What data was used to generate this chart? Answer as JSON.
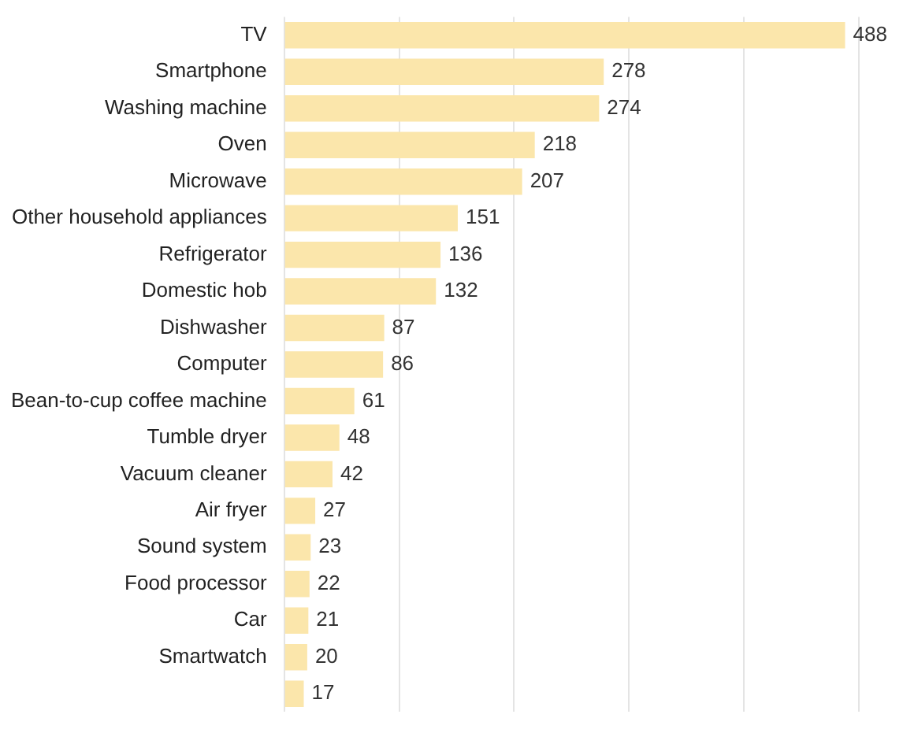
{
  "chart_data": {
    "type": "bar",
    "orientation": "horizontal",
    "categories": [
      "TV",
      "Smartphone",
      "Washing machine",
      "Oven",
      "Microwave",
      "Other household appliances",
      "Refrigerator",
      "Domestic hob",
      "Dishwasher",
      "Computer",
      "Bean-to-cup coffee machine",
      "Tumble dryer",
      "Vacuum cleaner",
      "Air fryer",
      "Sound system",
      "Food processor",
      "Car",
      "Smartwatch",
      null
    ],
    "values": [
      488,
      278,
      274,
      218,
      207,
      151,
      136,
      132,
      87,
      86,
      61,
      48,
      42,
      27,
      23,
      22,
      21,
      20,
      17
    ],
    "color": "#fbe6ab",
    "data_labels": true,
    "grid": "x",
    "tick_labels": "y",
    "xlim": [
      0,
      500
    ],
    "xticks": [
      {
        "value": 0,
        "label": null
      },
      {
        "value": 100,
        "label": null
      },
      {
        "value": 200,
        "label": null
      },
      {
        "value": 300,
        "label": null
      },
      {
        "value": 400,
        "label": null
      },
      {
        "value": 500,
        "label": null
      }
    ]
  }
}
